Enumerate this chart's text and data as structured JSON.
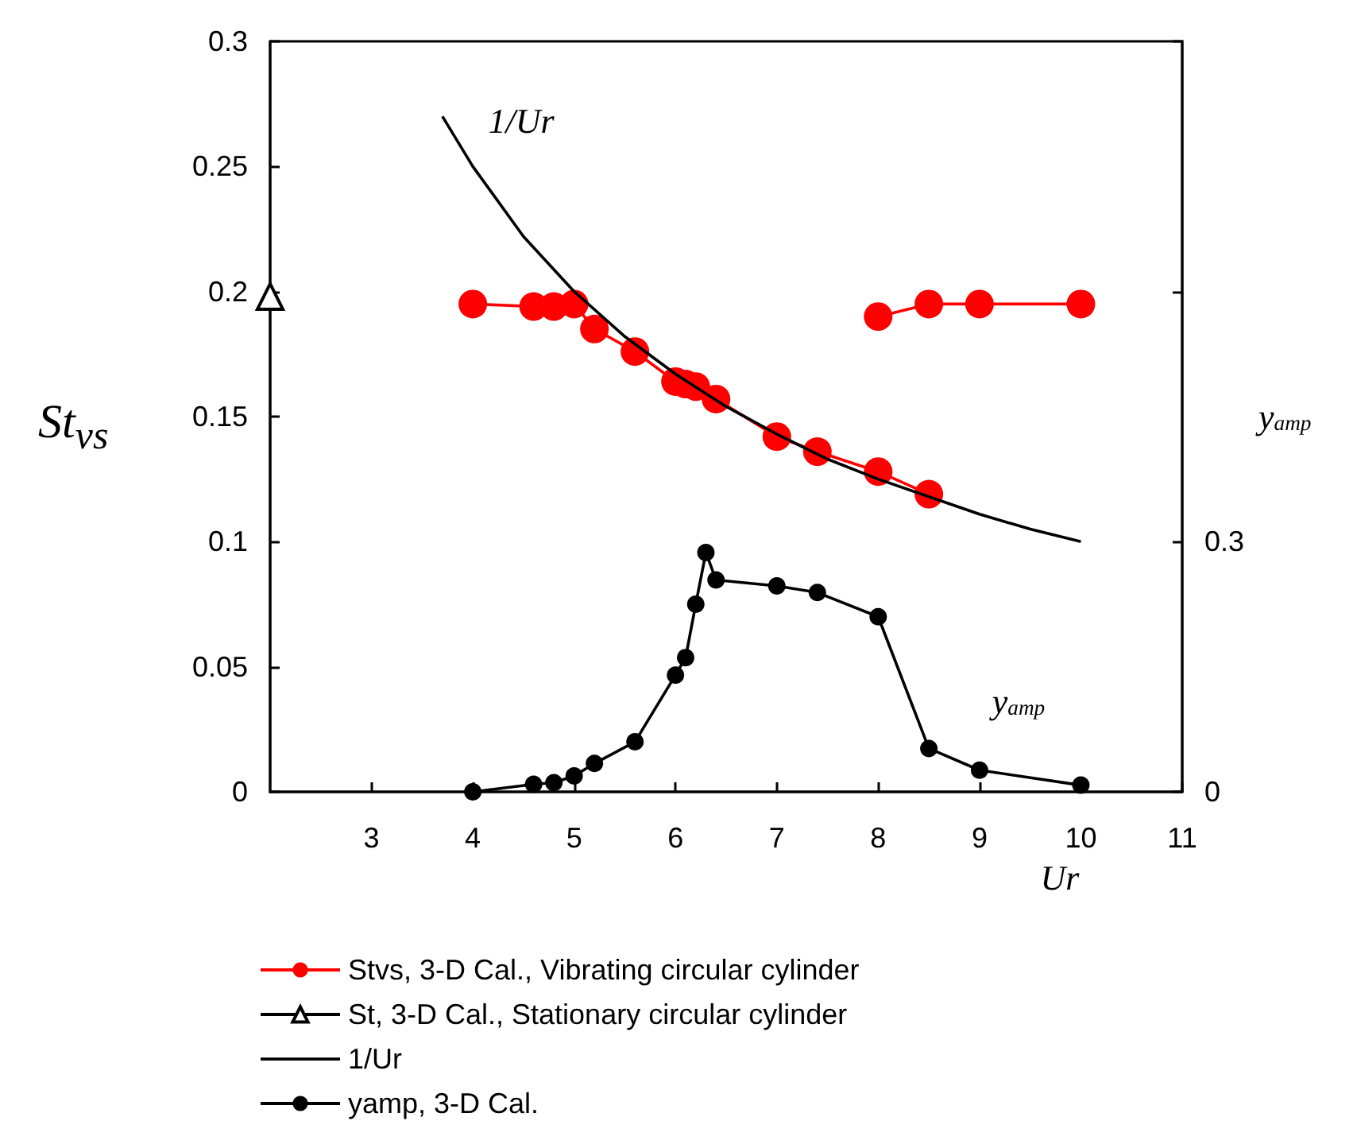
{
  "chart_data": {
    "type": "line",
    "xlabel": "Ur",
    "ylabel": "St$_{vs}$",
    "y2label": "y$_{amp}$",
    "xlim": [
      2,
      11
    ],
    "xticks": [
      3,
      4,
      5,
      6,
      7,
      8,
      9,
      10,
      11
    ],
    "ylim": [
      0,
      0.3
    ],
    "yticks": [
      0,
      0.05,
      0.1,
      0.15,
      0.2,
      0.25,
      0.3
    ],
    "y2lim": [
      0,
      0.9
    ],
    "y2ticks": [
      0,
      0.3,
      {
        "value": 0.6,
        "label": null
      },
      {
        "value": 0.9,
        "label": null
      }
    ],
    "grid": false,
    "legend": "bottom",
    "annotations": [
      "1/Ur",
      "y$_{amp}$"
    ],
    "series": [
      {
        "name": "Stvs, 3-D Cal., Vibrating circular cylinder",
        "color": "#ff0000",
        "marker": "circle",
        "x": [
          4,
          4.6,
          4.8,
          5,
          5.2,
          5.6,
          6,
          6.1,
          6.2,
          6.4,
          7,
          7.4,
          8,
          8.5,
          null,
          8,
          8.5,
          9,
          10
        ],
        "values": [
          0.195,
          0.194,
          0.194,
          0.195,
          0.185,
          0.176,
          0.164,
          0.163,
          0.162,
          0.157,
          0.142,
          0.136,
          0.128,
          0.119,
          null,
          0.19,
          0.195,
          0.195,
          0.195
        ]
      },
      {
        "name": "St, 3-D Cal., Stationary circular cylinder",
        "color": "#000000",
        "marker": "triangle",
        "x": [
          2
        ],
        "values": [
          0.198
        ]
      },
      {
        "name": "1/Ur",
        "color": "#000000",
        "marker": "none",
        "x": [
          3.7,
          4,
          4.5,
          5,
          5.5,
          6,
          6.5,
          7,
          7.5,
          8,
          8.5,
          9,
          9.5,
          10
        ],
        "values": [
          0.27,
          0.25,
          0.222,
          0.2,
          0.182,
          0.167,
          0.154,
          0.143,
          0.133,
          0.125,
          0.118,
          0.111,
          0.105,
          0.1
        ]
      },
      {
        "name": "yamp, 3-D Cal.",
        "color": "#000000",
        "marker": "circle",
        "axis": "y2",
        "x": [
          4,
          4.6,
          4.8,
          5,
          5.2,
          5.6,
          6,
          6.1,
          6.2,
          6.3,
          6.4,
          7,
          7.4,
          8,
          8.5,
          9,
          10
        ],
        "values": [
          0,
          0.009,
          0.011,
          0.019,
          0.034,
          0.06,
          0.14,
          0.161,
          0.225,
          0.287,
          0.254,
          0.247,
          0.239,
          0.21,
          0.052,
          0.026,
          0.008
        ]
      }
    ]
  }
}
